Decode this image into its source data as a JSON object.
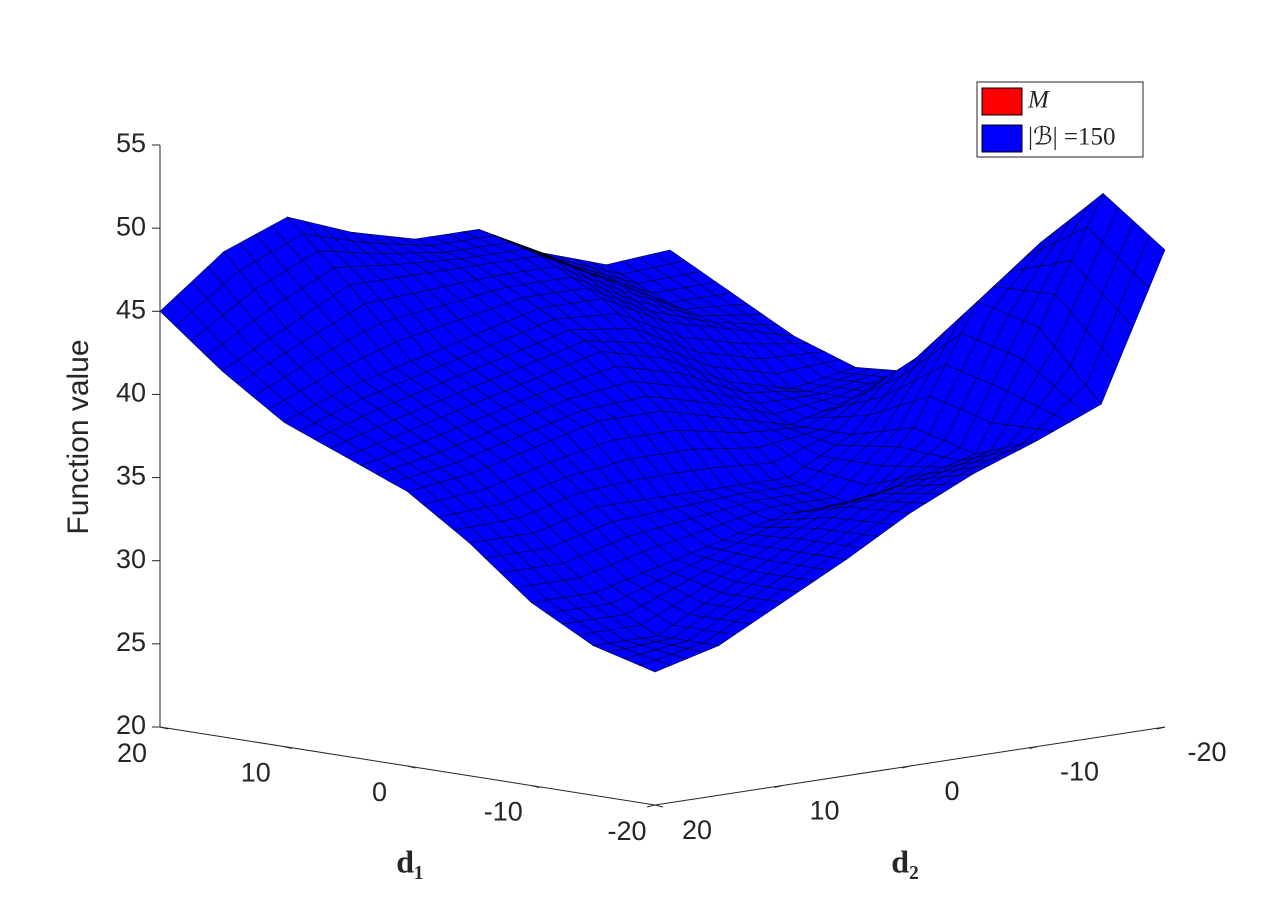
{
  "chart_data": {
    "type": "surface",
    "xlabel": "d₁",
    "ylabel": "d₂",
    "zlabel": "Function value",
    "x": [
      -20,
      -15,
      -10,
      -5,
      0,
      5,
      10,
      15,
      20
    ],
    "y": [
      -20,
      -15,
      -10,
      -5,
      0,
      5,
      10,
      15,
      20
    ],
    "xlim": [
      -20,
      20
    ],
    "ylim": [
      -20,
      20
    ],
    "zlim": [
      20,
      55
    ],
    "xticks": [
      -20,
      -10,
      0,
      10,
      20
    ],
    "yticks": [
      -20,
      -10,
      0,
      10,
      20
    ],
    "zticks": [
      20,
      25,
      30,
      35,
      40,
      45,
      50,
      55
    ],
    "legend": "northeast",
    "series": [
      {
        "name": "M",
        "color": "#ff0000"
      },
      {
        "name": "|ℬ| =150",
        "color": "#0000ff",
        "z": [
          [
            48.7,
            40,
            38.4,
            37,
            35.2,
            33,
            31,
            29,
            28
          ],
          [
            51.5,
            44,
            37,
            36,
            35,
            33,
            31,
            29,
            29
          ],
          [
            48,
            45,
            38,
            34,
            34,
            33,
            32,
            31,
            31
          ],
          [
            42,
            41,
            37,
            35,
            35,
            35,
            35,
            34,
            34
          ],
          [
            39,
            38,
            37,
            38,
            39,
            39,
            38,
            37,
            36.5
          ],
          [
            38.7,
            38,
            39,
            41,
            42,
            41,
            40,
            39,
            38
          ],
          [
            40,
            41,
            42,
            44,
            44,
            43,
            42,
            41,
            39.5
          ],
          [
            42,
            42,
            44,
            46,
            46,
            46,
            46,
            44,
            42
          ],
          [
            44,
            43.7,
            45,
            47,
            47,
            48,
            49.5,
            48,
            45
          ]
        ]
      }
    ]
  }
}
